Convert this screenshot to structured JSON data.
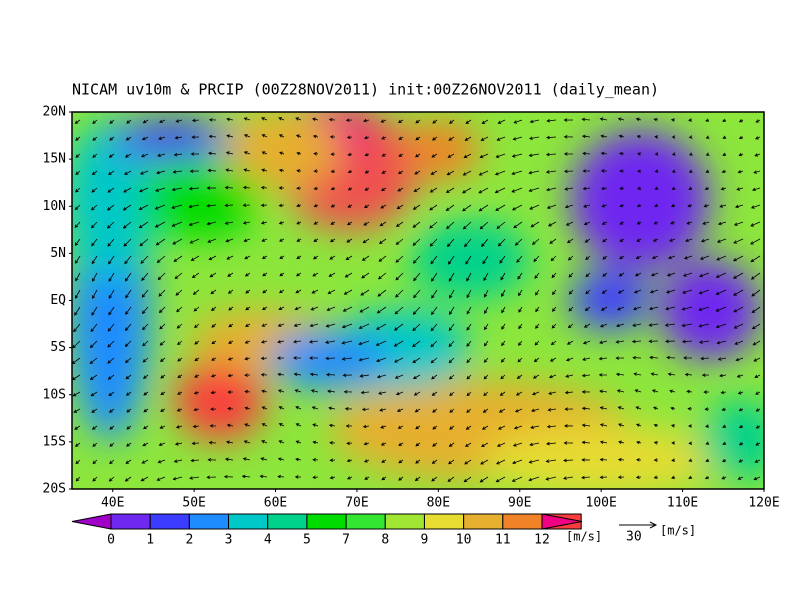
{
  "title": "NICAM uv10m & PRCIP (00Z28NOV2011) init:00Z26NOV2011 (daily_mean)",
  "lat_labels": [
    "20N",
    "15N",
    "10N",
    "5N",
    "EQ",
    "5S",
    "10S",
    "15S",
    "20S"
  ],
  "lon_labels": [
    "40E",
    "50E",
    "60E",
    "70E",
    "80E",
    "90E",
    "100E",
    "110E",
    "120E"
  ],
  "colorbar": {
    "labels": [
      "0",
      "1",
      "2",
      "3",
      "4",
      "5",
      "7",
      "8",
      "9",
      "10",
      "11",
      "12"
    ],
    "unit": "[m/s]",
    "colors": [
      "#a000c8",
      "#6e28f0",
      "#3c3cff",
      "#1e8cff",
      "#00c8c8",
      "#00d28c",
      "#00dc00",
      "#32e632",
      "#a0e632",
      "#e6dc32",
      "#e6af2d",
      "#f08228",
      "#fa3c3c",
      "#f00082"
    ]
  },
  "reference_vector": {
    "value": "30",
    "unit": "[m/s]"
  }
}
